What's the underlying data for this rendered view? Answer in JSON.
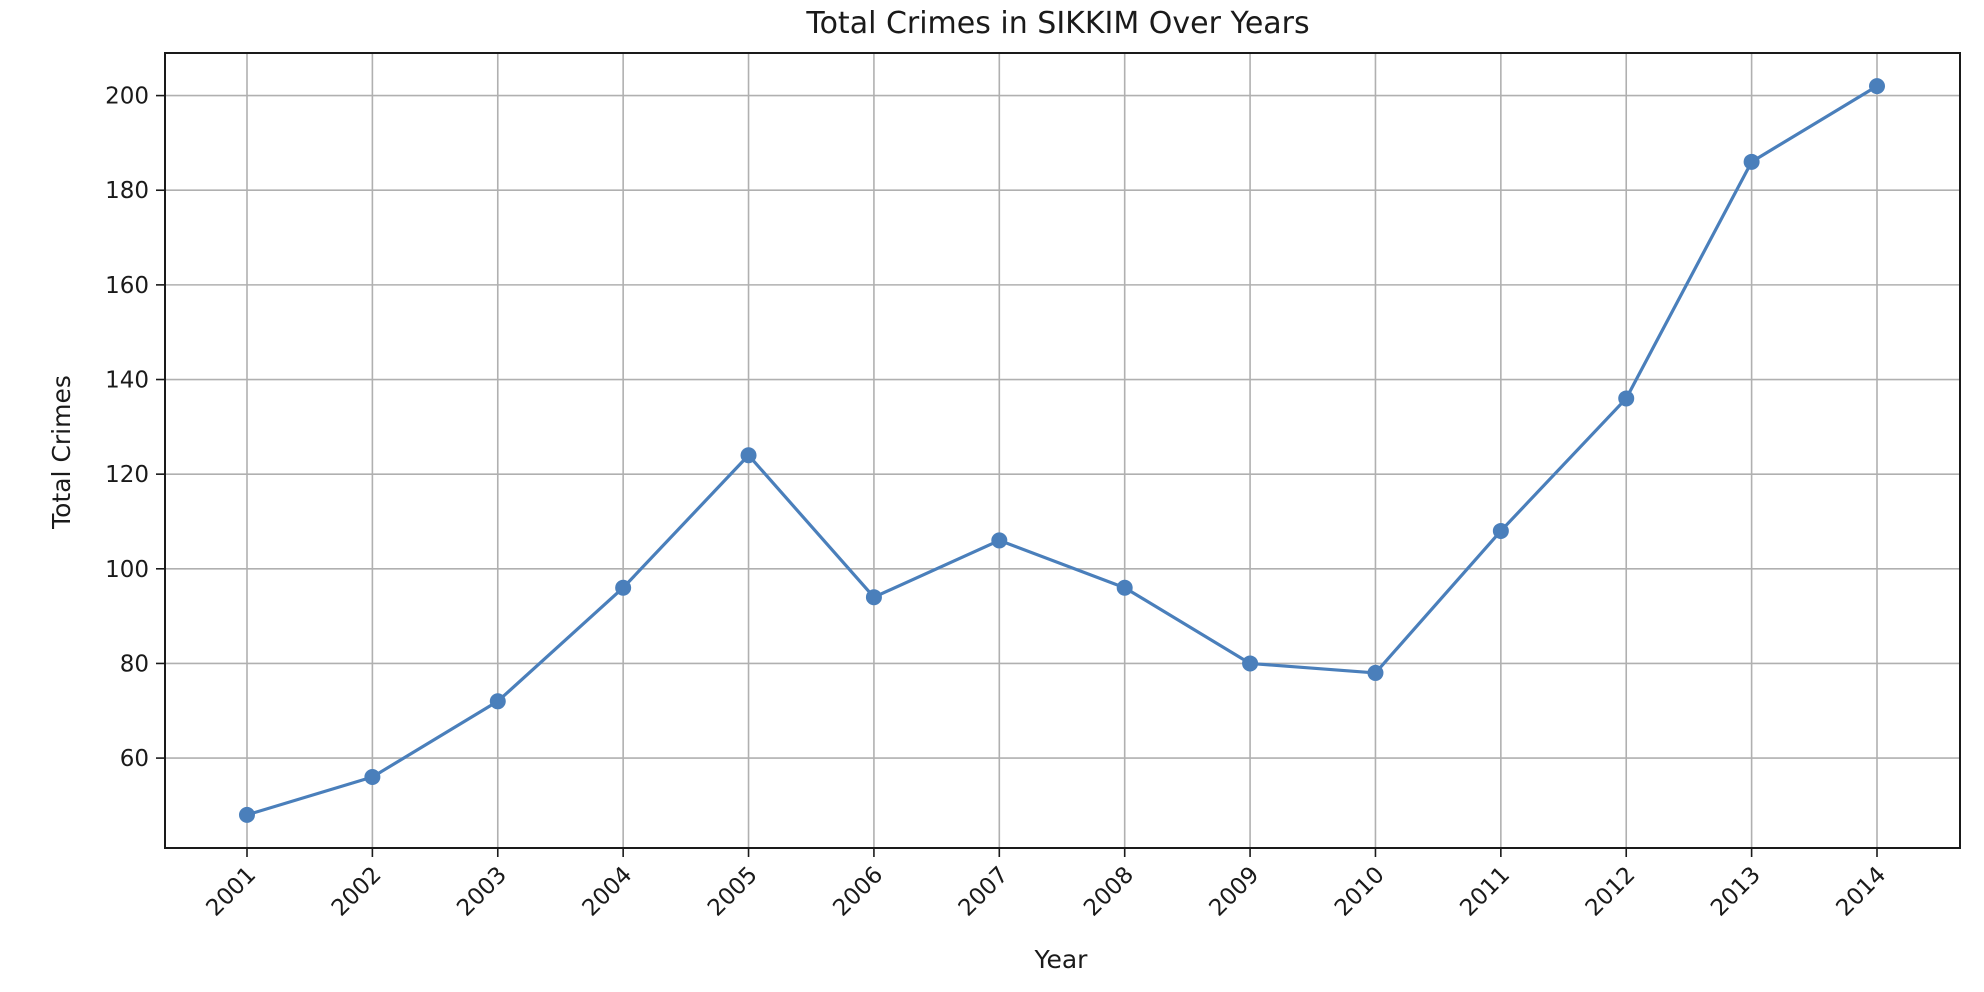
{
  "chart_data": {
    "type": "line",
    "title": "Total Crimes in SIKKIM Over Years",
    "xlabel": "Year",
    "ylabel": "Total Crimes",
    "categories": [
      "2001",
      "2002",
      "2003",
      "2004",
      "2005",
      "2006",
      "2007",
      "2008",
      "2009",
      "2010",
      "2011",
      "2012",
      "2013",
      "2014"
    ],
    "series": [
      {
        "values": [
          48,
          56,
          72,
          96,
          124,
          94,
          106,
          96,
          80,
          78,
          108,
          136,
          186,
          202
        ],
        "color": "#4a7fbb"
      }
    ],
    "yticks": [
      60,
      80,
      100,
      120,
      140,
      160,
      180,
      200
    ],
    "ylim": [
      41,
      209
    ],
    "grid": true,
    "marker": "circle",
    "legend": "none"
  }
}
